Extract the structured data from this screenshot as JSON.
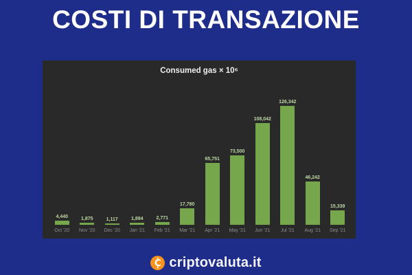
{
  "page": {
    "title": "COSTI DI TRANSAZIONE"
  },
  "colors": {
    "background": "#1f2d8a",
    "panel": "#292929",
    "bar": "#76a74c",
    "value_label": "#bdd8a3",
    "axis_label": "#8f8f8f",
    "page_title_text": "#ffffff",
    "chart_title_text": "#efefef",
    "logo_orange": "#f6921e",
    "brand_text": "#f4f4f8"
  },
  "chart": {
    "title": "Consumed gas × 10⁶"
  },
  "chart_data": {
    "type": "bar",
    "title": "Consumed gas × 10⁶",
    "categories": [
      "Oct '20",
      "Nov '20",
      "Dec '20",
      "Jan '21",
      "Feb '21",
      "Mar '21",
      "Apr '21",
      "May '21",
      "Jun '21",
      "Jul '21",
      "Aug '21",
      "Sep '21"
    ],
    "values": [
      4440,
      1875,
      1117,
      1894,
      2771,
      17780,
      65751,
      73500,
      108042,
      126342,
      46242,
      15339
    ],
    "value_labels": [
      "4,440",
      "1,875",
      "1,117",
      "1,894",
      "2,771",
      "17,780",
      "65,751",
      "73,500",
      "108,042",
      "126,342",
      "46,242",
      "15,339"
    ],
    "xlabel": "",
    "ylabel": "",
    "ylim": [
      0,
      130000
    ],
    "grid": false,
    "legend": false,
    "bar_color": "#76a74c"
  },
  "footer": {
    "brand": "criptovaluta.it",
    "icon": "criptovaluta-coin-icon"
  }
}
